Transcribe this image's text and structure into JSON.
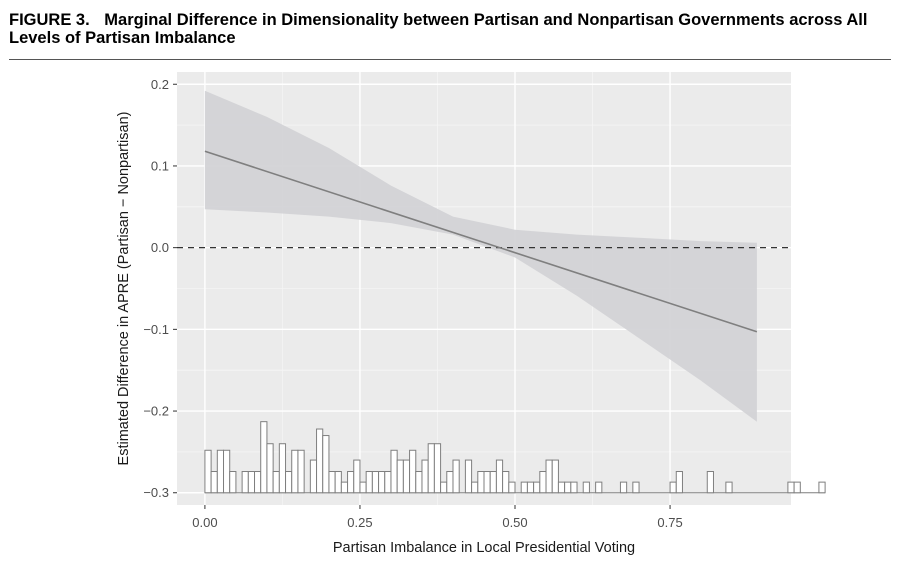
{
  "figure": {
    "label": "FIGURE 3.",
    "title": "Marginal Difference in Dimensionality between Partisan and Nonpartisan Governments across All Levels of Partisan Imbalance"
  },
  "colors": {
    "panel": "#ebebeb",
    "grid_major": "#ffffff",
    "ribbon": "#d3d3d6",
    "line": "#7f7f7f",
    "hist_stroke": "#7f7f7f",
    "hist_fill": "#ffffff",
    "reference": "#333333"
  },
  "chart_data": {
    "type": "line",
    "xlabel": "Partisan Imbalance in Local Presidential Voting",
    "ylabel": "Estimated Difference in APRE (Partisan − Nonpartisan)",
    "xlim": [
      -0.045,
      0.945
    ],
    "ylim": [
      -0.315,
      0.215
    ],
    "x_ticks": [
      {
        "value": 0.0,
        "label": "0.00"
      },
      {
        "value": 0.25,
        "label": "0.25"
      },
      {
        "value": 0.5,
        "label": "0.50"
      },
      {
        "value": 0.75,
        "label": "0.75"
      }
    ],
    "y_ticks": [
      {
        "value": -0.3,
        "label": "−0.3"
      },
      {
        "value": -0.2,
        "label": "−0.2"
      },
      {
        "value": -0.1,
        "label": "−0.1"
      },
      {
        "value": 0.0,
        "label": "0.0"
      },
      {
        "value": 0.1,
        "label": "0.1"
      },
      {
        "value": 0.2,
        "label": "0.2"
      }
    ],
    "grid": true,
    "reference_line": {
      "y": 0.0,
      "style": "dashed"
    },
    "estimate": {
      "x": [
        0.0,
        0.89
      ],
      "y": [
        0.118,
        -0.103
      ]
    },
    "confidence_band": {
      "x": [
        0.0,
        0.1,
        0.2,
        0.3,
        0.4,
        0.5,
        0.6,
        0.7,
        0.8,
        0.89
      ],
      "upper": [
        0.192,
        0.16,
        0.122,
        0.076,
        0.038,
        0.022,
        0.016,
        0.012,
        0.008,
        0.006
      ],
      "lower": [
        0.047,
        0.043,
        0.038,
        0.03,
        0.016,
        -0.012,
        -0.059,
        -0.111,
        -0.163,
        -0.213
      ]
    },
    "histogram": {
      "baseline": -0.3,
      "bin_width": 0.01,
      "bin_start": 0.0,
      "heights": [
        0.052,
        0.026,
        0.052,
        0.052,
        0.026,
        0.0,
        0.026,
        0.026,
        0.026,
        0.087,
        0.06,
        0.026,
        0.06,
        0.026,
        0.052,
        0.052,
        0.0,
        0.04,
        0.078,
        0.07,
        0.026,
        0.026,
        0.013,
        0.026,
        0.04,
        0.013,
        0.026,
        0.026,
        0.026,
        0.026,
        0.052,
        0.04,
        0.04,
        0.052,
        0.026,
        0.04,
        0.06,
        0.06,
        0.013,
        0.026,
        0.04,
        0.0,
        0.04,
        0.013,
        0.026,
        0.026,
        0.026,
        0.04,
        0.026,
        0.013,
        0.0,
        0.013,
        0.013,
        0.013,
        0.026,
        0.04,
        0.04,
        0.013,
        0.013,
        0.013,
        0.0,
        0.013,
        0.0,
        0.013,
        0.0,
        0.0,
        0.0,
        0.013,
        0.0,
        0.013,
        0.0,
        0.0,
        0.0,
        0.0,
        0.0,
        0.013,
        0.026,
        0.0,
        0.0,
        0.0,
        0.0,
        0.026,
        0.0,
        0.0,
        0.013,
        0.0,
        0.0,
        0.0,
        0.0,
        0.0,
        0.0,
        0.0,
        0.0,
        0.0,
        0.013,
        0.013,
        0.0,
        0.0,
        0.0,
        0.013
      ]
    }
  }
}
